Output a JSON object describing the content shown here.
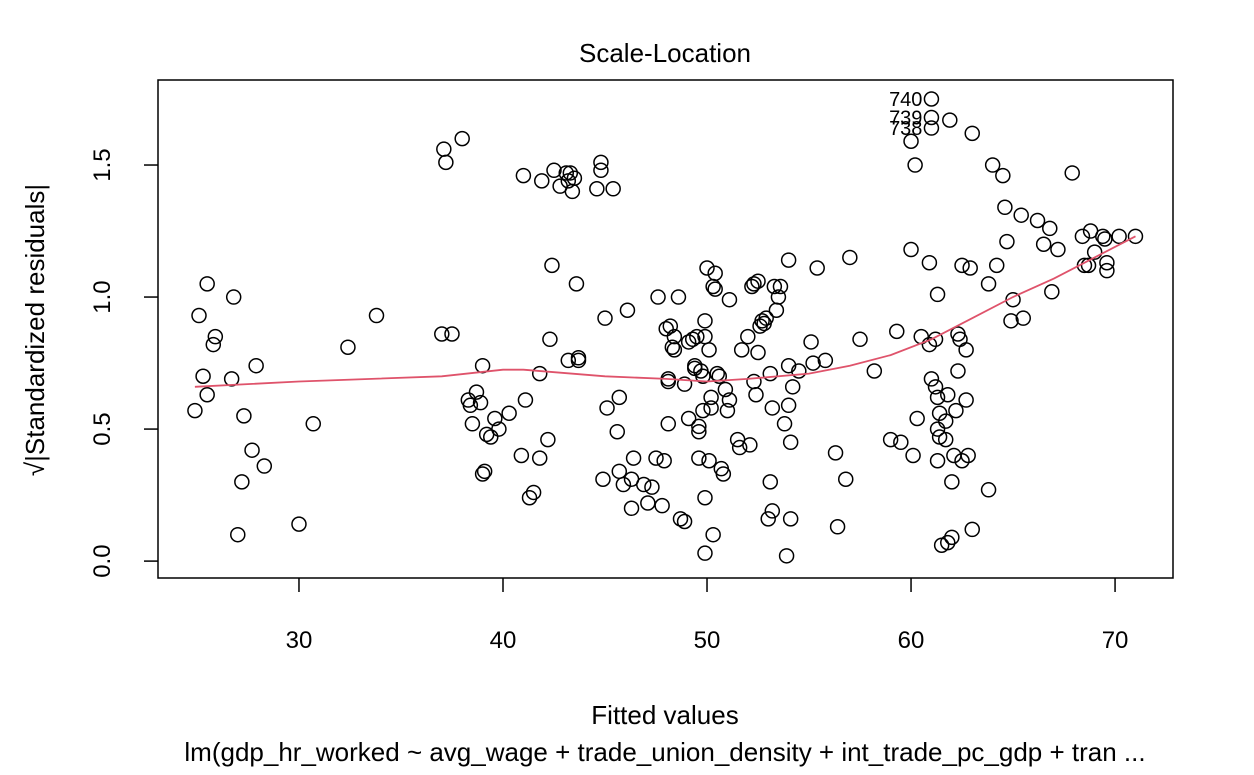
{
  "chart_data": {
    "type": "scatter",
    "title": "Scale-Location",
    "xlabel": "Fitted values",
    "ylabel": "√|Standardized residuals|",
    "subtitle": "lm(gdp_hr_worked ~ avg_wage + trade_union_density + int_trade_pc_gdp + tran ...",
    "color": "#000000",
    "xlim": [
      23.09,
      72.84
    ],
    "ylim": [
      -0.064,
      1.822
    ],
    "xticks": [
      30,
      40,
      50,
      60,
      70
    ],
    "yticks": [
      {
        "value": 0,
        "label": "0.0"
      },
      0.5,
      {
        "value": 1,
        "label": "1.0"
      },
      1.5
    ],
    "x": [
      24.9,
      25.1,
      25.3,
      25.5,
      25.5,
      25.8,
      25.9,
      26.8,
      26.7,
      27.0,
      27.2,
      27.3,
      27.7,
      27.9,
      28.3,
      30.0,
      30.7,
      32.4,
      33.8,
      37.0,
      37.5,
      37.1,
      37.2,
      38.0,
      38.3,
      38.4,
      38.5,
      38.7,
      38.9,
      39.0,
      39.0,
      39.1,
      39.2,
      39.4,
      39.6,
      39.8,
      40.3,
      40.9,
      41.0,
      41.1,
      41.3,
      41.5,
      41.8,
      41.8,
      41.9,
      42.2,
      42.3,
      42.4,
      42.5,
      42.8,
      43.1,
      43.2,
      43.2,
      43.3,
      43.4,
      43.5,
      43.6,
      43.7,
      43.7,
      44.6,
      44.8,
      44.8,
      45.0,
      44.9,
      45.1,
      45.4,
      45.6,
      45.7,
      45.7,
      45.9,
      46.1,
      46.3,
      46.3,
      46.4,
      46.9,
      47.1,
      47.3,
      47.5,
      47.6,
      47.8,
      47.9,
      48.0,
      48.1,
      48.1,
      48.1,
      48.2,
      48.3,
      48.4,
      48.4,
      48.6,
      48.7,
      48.9,
      48.9,
      49.1,
      49.1,
      49.3,
      49.4,
      49.4,
      49.5,
      49.6,
      49.6,
      49.6,
      49.7,
      49.8,
      49.9,
      49.9,
      49.8,
      49.9,
      49.9,
      50.0,
      50.1,
      50.1,
      50.2,
      50.2,
      50.3,
      50.3,
      50.4,
      50.4,
      50.5,
      50.6,
      50.7,
      50.8,
      50.9,
      51.0,
      51.1,
      51.1,
      51.5,
      51.6,
      51.7,
      52.0,
      52.1,
      52.2,
      52.3,
      52.3,
      52.4,
      52.5,
      52.5,
      52.6,
      52.7,
      52.8,
      52.9,
      53.0,
      53.1,
      53.1,
      53.2,
      53.2,
      53.3,
      53.4,
      53.5,
      53.6,
      53.8,
      53.9,
      54.0,
      54.0,
      54.0,
      54.1,
      54.1,
      54.2,
      54.5,
      55.1,
      55.2,
      55.4,
      55.8,
      56.3,
      56.4,
      56.8,
      57.0,
      57.5,
      58.2,
      59.0,
      59.3,
      59.5,
      60.0,
      60.0,
      60.1,
      60.2,
      60.3,
      60.5,
      60.9,
      61.0,
      61.0,
      61.0,
      60.9,
      61.0,
      61.2,
      61.2,
      61.3,
      61.3,
      61.3,
      61.3,
      61.4,
      61.4,
      61.5,
      61.7,
      61.7,
      61.8,
      61.8,
      61.9,
      62.0,
      62.0,
      62.1,
      62.2,
      62.3,
      62.3,
      62.4,
      62.5,
      62.5,
      62.7,
      62.7,
      62.8,
      62.9,
      63.0,
      63.0,
      63.8,
      63.8,
      64.0,
      64.2,
      64.5,
      64.6,
      64.7,
      64.9,
      65.0,
      65.4,
      65.5,
      66.2,
      66.5,
      66.8,
      66.9,
      67.2,
      67.9,
      68.4,
      68.5,
      68.7,
      68.8,
      69.0,
      69.4,
      69.5,
      69.6,
      69.6,
      70.2,
      71.0
    ],
    "values": [
      0.57,
      0.93,
      0.7,
      0.63,
      1.05,
      0.82,
      0.85,
      1.0,
      0.69,
      0.1,
      0.3,
      0.55,
      0.42,
      0.74,
      0.36,
      0.14,
      0.52,
      0.81,
      0.93,
      0.86,
      0.86,
      1.56,
      1.51,
      1.6,
      0.61,
      0.59,
      0.52,
      0.64,
      0.6,
      0.74,
      0.33,
      0.34,
      0.48,
      0.47,
      0.54,
      0.5,
      0.56,
      0.4,
      1.46,
      0.61,
      0.24,
      0.26,
      0.39,
      0.71,
      1.44,
      0.46,
      0.84,
      1.12,
      1.48,
      1.42,
      1.47,
      1.44,
      0.76,
      1.47,
      1.4,
      1.45,
      1.05,
      0.77,
      0.76,
      1.41,
      1.51,
      1.48,
      0.92,
      0.31,
      0.58,
      1.41,
      0.49,
      0.62,
      0.34,
      0.29,
      0.95,
      0.2,
      0.31,
      0.39,
      0.29,
      0.22,
      0.28,
      0.39,
      1.0,
      0.21,
      0.38,
      0.88,
      0.68,
      0.69,
      0.52,
      0.89,
      0.81,
      0.85,
      0.8,
      1.0,
      0.16,
      0.15,
      0.67,
      0.54,
      0.83,
      0.84,
      0.73,
      0.74,
      0.85,
      0.49,
      0.39,
      0.51,
      0.72,
      0.7,
      0.91,
      0.85,
      0.57,
      0.24,
      0.03,
      1.11,
      0.38,
      0.8,
      0.58,
      0.62,
      0.1,
      1.04,
      1.03,
      1.09,
      0.71,
      0.7,
      0.35,
      0.33,
      0.65,
      0.57,
      0.61,
      0.99,
      0.46,
      0.43,
      0.8,
      0.85,
      0.44,
      1.04,
      1.05,
      0.68,
      0.63,
      0.79,
      1.06,
      0.89,
      0.91,
      0.9,
      0.92,
      0.16,
      0.71,
      0.3,
      0.58,
      0.19,
      1.04,
      0.95,
      1.0,
      1.04,
      0.52,
      0.02,
      0.74,
      1.14,
      0.59,
      0.16,
      0.45,
      0.66,
      0.72,
      0.83,
      0.75,
      1.11,
      0.76,
      0.41,
      0.13,
      0.31,
      1.15,
      0.84,
      0.72,
      0.46,
      0.87,
      0.45,
      1.59,
      1.18,
      0.4,
      1.5,
      0.54,
      0.85,
      1.13,
      1.75,
      1.68,
      1.64,
      0.82,
      0.69,
      0.84,
      0.66,
      0.62,
      1.01,
      0.38,
      0.5,
      0.47,
      0.56,
      0.06,
      0.46,
      0.53,
      0.63,
      0.07,
      1.67,
      0.09,
      0.3,
      0.4,
      0.57,
      0.72,
      0.86,
      0.84,
      0.38,
      1.12,
      0.8,
      0.61,
      0.4,
      1.11,
      1.62,
      0.12,
      0.27,
      1.05,
      1.5,
      1.12,
      1.46,
      1.34,
      1.21,
      0.91,
      0.99,
      1.31,
      0.92,
      1.29,
      1.2,
      1.26,
      1.02,
      1.18,
      1.47,
      1.23,
      1.12,
      1.12,
      1.25,
      1.17,
      1.23,
      1.22,
      1.13,
      1.1,
      1.23,
      1.23
    ],
    "smoother": {
      "color": "#df536b",
      "x": [
        24.9,
        30,
        37,
        40,
        41,
        45,
        48,
        50,
        52,
        55,
        57,
        59,
        61,
        63,
        65,
        67,
        69,
        71
      ],
      "values": [
        0.66,
        0.68,
        0.7,
        0.725,
        0.725,
        0.7,
        0.69,
        0.68,
        0.69,
        0.71,
        0.74,
        0.78,
        0.84,
        0.92,
        1.0,
        1.07,
        1.15,
        1.23
      ]
    },
    "annotations": [
      {
        "text": "740",
        "x": 61.0,
        "y": 1.75
      },
      {
        "text": "739",
        "x": 61.0,
        "y": 1.68
      },
      {
        "text": "738",
        "x": 61.0,
        "y": 1.64
      }
    ]
  }
}
